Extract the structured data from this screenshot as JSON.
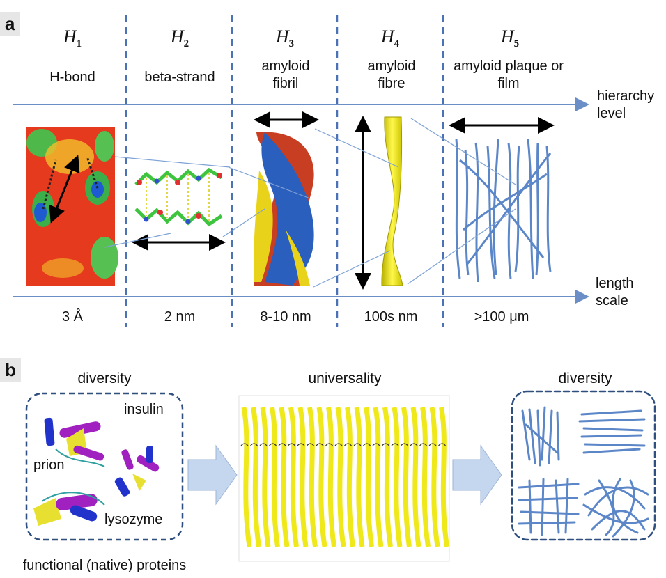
{
  "panel_a": {
    "label": "a",
    "levels": [
      {
        "symbol": "H",
        "sub": "1",
        "name": "H-bond",
        "scale": "3 Å"
      },
      {
        "symbol": "H",
        "sub": "2",
        "name": "beta-strand",
        "scale": "2 nm"
      },
      {
        "symbol": "H",
        "sub": "3",
        "name": "amyloid fibril",
        "scale": "8-10 nm"
      },
      {
        "symbol": "H",
        "sub": "4",
        "name": "amyloid fibre",
        "scale": "100s nm"
      },
      {
        "symbol": "H",
        "sub": "5",
        "name": "amyloid plaque or film",
        "scale": ">100 μm"
      }
    ],
    "axis_top": "hierarchy level",
    "axis_bottom": "length scale"
  },
  "panel_b": {
    "label": "b",
    "left_title": "diversity",
    "middle_title": "universality",
    "right_title": "diversity",
    "proteins": [
      "insulin",
      "prion",
      "lysozyme"
    ],
    "bottom_caption": "functional (native) proteins"
  },
  "colors": {
    "axis": "#6a8ec5",
    "dashed": "#4a72b5",
    "fibre_blue": "#5b86c8",
    "yellow": "#f2ee1a",
    "red": "#d84a2a",
    "box_border": "#2f4f7f",
    "arrow_fill": "#c5d7ee"
  }
}
